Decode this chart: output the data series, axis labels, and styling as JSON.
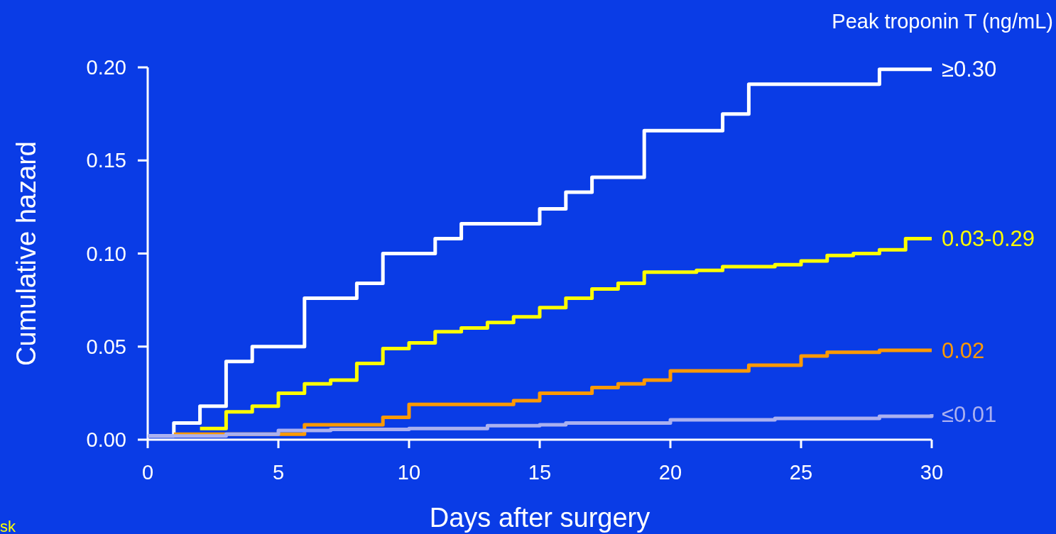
{
  "chart_data": {
    "type": "step",
    "xlabel": "Days after surgery",
    "ylabel": "Cumulative hazard",
    "legend_title": "Peak troponin T (ng/mL)",
    "legend": false,
    "marker": "none",
    "line_style": "solid",
    "grid": false,
    "xlim": [
      0,
      30
    ],
    "xticks": [
      0,
      5,
      10,
      15,
      20,
      25,
      30
    ],
    "ylim": [
      0,
      0.2
    ],
    "yticks": [
      {
        "value": 0,
        "label": "0.00"
      },
      {
        "value": 0.05,
        "label": "0.05"
      },
      {
        "value": 0.1,
        "label": "0.10"
      },
      {
        "value": 0.15,
        "label": "0.15"
      },
      {
        "value": 0.2,
        "label": "0.20"
      }
    ],
    "annotations": [
      "sk"
    ],
    "series": [
      {
        "name": "≥0.30",
        "color": "#ffffff",
        "x": [
          0,
          1,
          2,
          3,
          4,
          6,
          8,
          9,
          11,
          12,
          15,
          16,
          17,
          19,
          22,
          23,
          28,
          30
        ],
        "values": [
          0.002,
          0.009,
          0.018,
          0.042,
          0.05,
          0.076,
          0.084,
          0.1,
          0.108,
          0.116,
          0.124,
          0.133,
          0.141,
          0.166,
          0.175,
          0.191,
          0.199,
          0.199
        ]
      },
      {
        "name": "0.03-0.29",
        "color": "#ffff00",
        "x": [
          2,
          3,
          4,
          5,
          6,
          7,
          8,
          9,
          10,
          11,
          12,
          13,
          14,
          15,
          16,
          17,
          18,
          19,
          21,
          22,
          24,
          25,
          26,
          27,
          28,
          29,
          30
        ],
        "values": [
          0.006,
          0.015,
          0.018,
          0.025,
          0.03,
          0.032,
          0.041,
          0.049,
          0.052,
          0.058,
          0.06,
          0.063,
          0.066,
          0.071,
          0.076,
          0.081,
          0.084,
          0.09,
          0.091,
          0.093,
          0.094,
          0.096,
          0.099,
          0.1,
          0.102,
          0.108,
          0.108
        ]
      },
      {
        "name": "0.02",
        "color": "#ff9900",
        "x": [
          1,
          6,
          9,
          10,
          14,
          15,
          17,
          18,
          19,
          20,
          23,
          25,
          26,
          28,
          30
        ],
        "values": [
          0.003,
          0.008,
          0.012,
          0.019,
          0.021,
          0.025,
          0.028,
          0.03,
          0.032,
          0.037,
          0.04,
          0.045,
          0.047,
          0.048,
          0.048
        ]
      },
      {
        "name": "≤0.01",
        "color": "#aab0f0",
        "x": [
          0,
          3,
          5,
          7,
          10,
          13,
          15,
          16,
          20,
          24,
          28,
          30
        ],
        "values": [
          0.002,
          0.003,
          0.005,
          0.0055,
          0.006,
          0.0075,
          0.008,
          0.009,
          0.0107,
          0.0114,
          0.0126,
          0.0137
        ]
      }
    ]
  }
}
